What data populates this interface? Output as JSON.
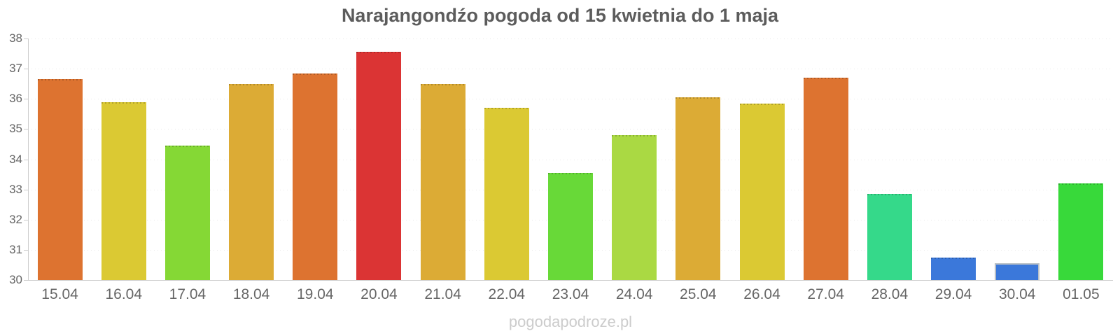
{
  "title": "Narajangondźo pogoda od 15 kwietnia do 1 maja",
  "watermark": "pogodapodroze.pl",
  "chart_data": {
    "type": "bar",
    "title": "Narajangondźo pogoda od 15 kwietnia do 1 maja",
    "categories": [
      "15.04",
      "16.04",
      "17.04",
      "18.04",
      "19.04",
      "20.04",
      "21.04",
      "22.04",
      "23.04",
      "24.04",
      "25.04",
      "26.04",
      "27.04",
      "28.04",
      "29.04",
      "30.04",
      "01.05"
    ],
    "values": [
      36.65,
      35.9,
      34.45,
      36.5,
      36.85,
      37.55,
      36.5,
      35.7,
      33.55,
      34.8,
      36.05,
      35.85,
      36.7,
      32.85,
      30.75,
      30.55,
      33.2
    ],
    "bar_colors": [
      "#dd7330",
      "#dbc933",
      "#85d835",
      "#dcab35",
      "#dd7330",
      "#db3434",
      "#dcab35",
      "#dbc933",
      "#68d938",
      "#aad943",
      "#dcab35",
      "#dbc933",
      "#dd7330",
      "#35d98a",
      "#3b78da",
      "#3b78da",
      "#38d93a"
    ],
    "highlighted_bar_index": 15,
    "highlight_border_color": "#b9c0c6",
    "ylim": [
      30,
      38
    ],
    "yticks": [
      30,
      31,
      32,
      33,
      34,
      35,
      36,
      37,
      38
    ],
    "xlabel": "",
    "ylabel": "",
    "grid": true,
    "legend": false,
    "colors": {
      "title": "#5c5c5c",
      "axis_labels": "#666666",
      "axis_line": "#cccccc",
      "gridline": "#e9e9e9",
      "watermark": "#cccccc"
    }
  }
}
